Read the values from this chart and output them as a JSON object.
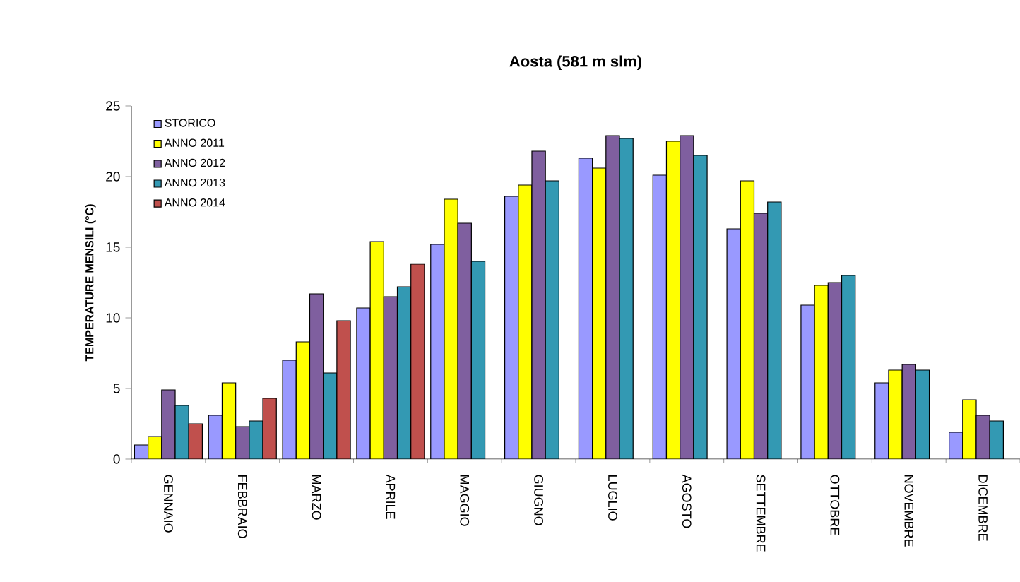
{
  "chart_data": {
    "type": "bar",
    "title": "Aosta (581 m slm)",
    "ylabel": "TEMPERATURE MENSILI (°C)",
    "categories": [
      "GENNAIO",
      "FEBBRAIO",
      "MARZO",
      "APRILE",
      "MAGGIO",
      "GIUGNO",
      "LUGLIO",
      "AGOSTO",
      "SETTEMBRE",
      "OTTOBRE",
      "NOVEMBRE",
      "DICEMBRE"
    ],
    "series": [
      {
        "name": "STORICO",
        "color": "#9999ff",
        "values": [
          1.0,
          3.1,
          7.0,
          10.7,
          15.2,
          18.6,
          21.3,
          20.1,
          16.3,
          10.9,
          5.4,
          1.9
        ]
      },
      {
        "name": "ANNO 2011",
        "color": "#ffff00",
        "values": [
          1.6,
          5.4,
          8.3,
          15.4,
          18.4,
          19.4,
          20.6,
          22.5,
          19.7,
          12.3,
          6.3,
          4.2
        ]
      },
      {
        "name": "ANNO 2012",
        "color": "#7f5f9f",
        "values": [
          4.9,
          2.3,
          11.7,
          11.5,
          16.7,
          21.8,
          22.9,
          22.9,
          17.4,
          12.5,
          6.7,
          3.1
        ]
      },
      {
        "name": "ANNO 2013",
        "color": "#3399b3",
        "values": [
          3.8,
          2.7,
          6.1,
          12.2,
          14.0,
          19.7,
          22.7,
          21.5,
          18.2,
          13.0,
          6.3,
          2.7
        ]
      },
      {
        "name": "ANNO 2014",
        "color": "#c0504d",
        "values": [
          2.5,
          4.3,
          9.8,
          13.8,
          null,
          null,
          null,
          null,
          null,
          null,
          null,
          null
        ]
      }
    ],
    "ylim": [
      0,
      25
    ],
    "yticks": [
      0,
      5,
      10,
      15,
      20,
      25
    ],
    "grid": false,
    "legend": "top left"
  }
}
